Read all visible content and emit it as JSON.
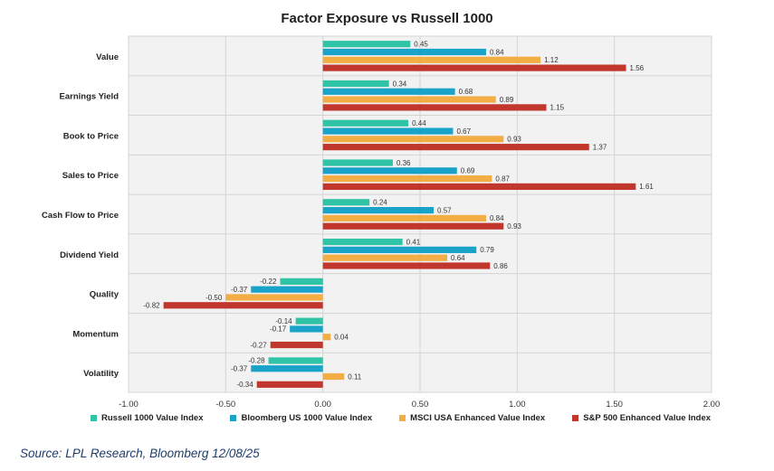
{
  "chart_data": {
    "type": "bar",
    "orientation": "horizontal",
    "title": "Factor Exposure vs Russell 1000",
    "categories": [
      "Value",
      "Earnings Yield",
      "Book to Price",
      "Sales to Price",
      "Cash Flow to Price",
      "Dividend Yield",
      "Quality",
      "Momentum",
      "Volatility"
    ],
    "series": [
      {
        "name": "Russell 1000 Value Index",
        "color": "#2ec4a5",
        "values": [
          0.45,
          0.34,
          0.44,
          0.36,
          0.24,
          0.41,
          -0.22,
          -0.14,
          -0.28
        ]
      },
      {
        "name": "Bloomberg US 1000 Value Index",
        "color": "#1aa3c9",
        "values": [
          0.84,
          0.68,
          0.67,
          0.69,
          0.57,
          0.79,
          -0.37,
          -0.17,
          -0.37
        ]
      },
      {
        "name": "MSCI USA Enhanced Value Index",
        "color": "#f2ad45",
        "values": [
          1.12,
          0.89,
          0.93,
          0.87,
          0.84,
          0.64,
          -0.5,
          0.04,
          0.11
        ]
      },
      {
        "name": "S&P 500 Enhanced Value Index",
        "color": "#c2372d",
        "values": [
          1.56,
          1.15,
          1.37,
          1.61,
          0.93,
          0.86,
          -0.82,
          -0.27,
          -0.34
        ]
      }
    ],
    "xlim": [
      -1.0,
      2.0
    ],
    "xticks": [
      "-1.00",
      "-0.50",
      "0.00",
      "0.50",
      "1.00",
      "1.50",
      "2.00"
    ],
    "grid": true,
    "legend_position": "bottom"
  },
  "source": "Source: LPL Research, Bloomberg 12/08/25"
}
